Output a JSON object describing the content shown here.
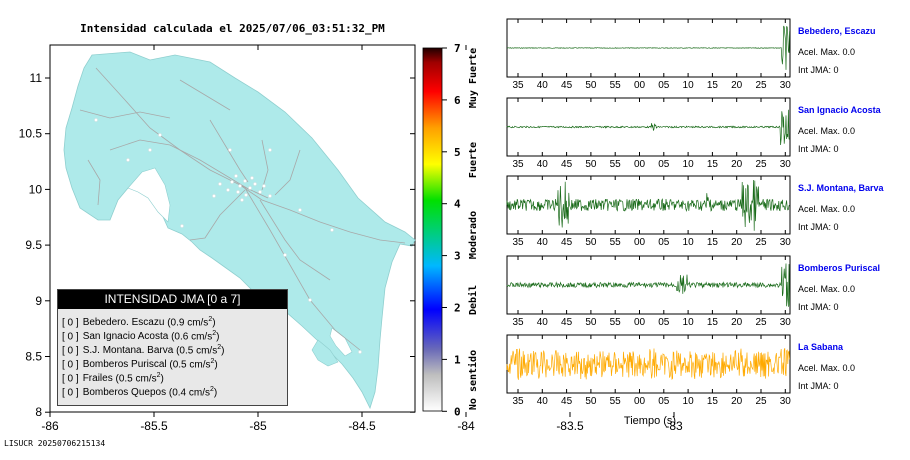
{
  "title": "Intensidad calculada el 2025/07/06_03:51:32_PM",
  "footer_code": "LISUCR 20250706215134",
  "map": {
    "x_ticks": [
      "-86",
      "-85.5",
      "-85",
      "-84.5",
      "-84",
      "-83.5",
      "-83"
    ],
    "y_ticks": [
      "11",
      "10.5",
      "10",
      "9.5",
      "9",
      "8.5",
      "8"
    ],
    "land_color": "#aeeaea",
    "sea_color": "#ffffff"
  },
  "colorbar": {
    "ticks": [
      "7",
      "6",
      "5",
      "4",
      "3",
      "2",
      "1",
      "0"
    ],
    "category_labels": [
      "Muy Fuerte",
      "Fuerte",
      "Moderado",
      "Debil",
      "No sentido"
    ]
  },
  "legend": {
    "title": "INTENSIDAD JMA [0 a 7]",
    "rows": [
      {
        "level": "[ 0 ]",
        "station": "Bebedero. Escazu",
        "accel": "(0.9 cm/s",
        "sup": "2",
        "close": ")"
      },
      {
        "level": "[ 0 ]",
        "station": "San Ignacio Acosta",
        "accel": "(0.6 cm/s",
        "sup": "2",
        "close": ")"
      },
      {
        "level": "[ 0 ]",
        "station": "S.J. Montana. Barva",
        "accel": "(0.5 cm/s",
        "sup": "2",
        "close": ")"
      },
      {
        "level": "[ 0 ]",
        "station": "Bomberos Puriscal",
        "accel": "(0.5 cm/s",
        "sup": "2",
        "close": ")"
      },
      {
        "level": "[ 0 ]",
        "station": "Frailes",
        "accel": "(0.5 cm/s",
        "sup": "2",
        "close": ")"
      },
      {
        "level": "[ 0 ]",
        "station": "Bomberos Quepos",
        "accel": "(0.4 cm/s",
        "sup": "2",
        "close": ")"
      }
    ]
  },
  "waveforms": {
    "time_ticks": [
      "35",
      "40",
      "45",
      "50",
      "55",
      "00",
      "05",
      "10",
      "15",
      "20",
      "25",
      "30"
    ],
    "xlabel": "Tiempo (s)",
    "accel_label": "Acel. Max. 0.0",
    "int_label": "Int JMA: 0",
    "stations": [
      {
        "name": "Bebedero, Escazu",
        "color": "#1a6b1a"
      },
      {
        "name": "San Ignacio Acosta",
        "color": "#1a6b1a"
      },
      {
        "name": "S.J. Montana, Barva",
        "color": "#1a6b1a"
      },
      {
        "name": "Bomberos Puriscal",
        "color": "#1a6b1a"
      },
      {
        "name": "La Sabana",
        "color": "#ffaa00"
      }
    ]
  }
}
